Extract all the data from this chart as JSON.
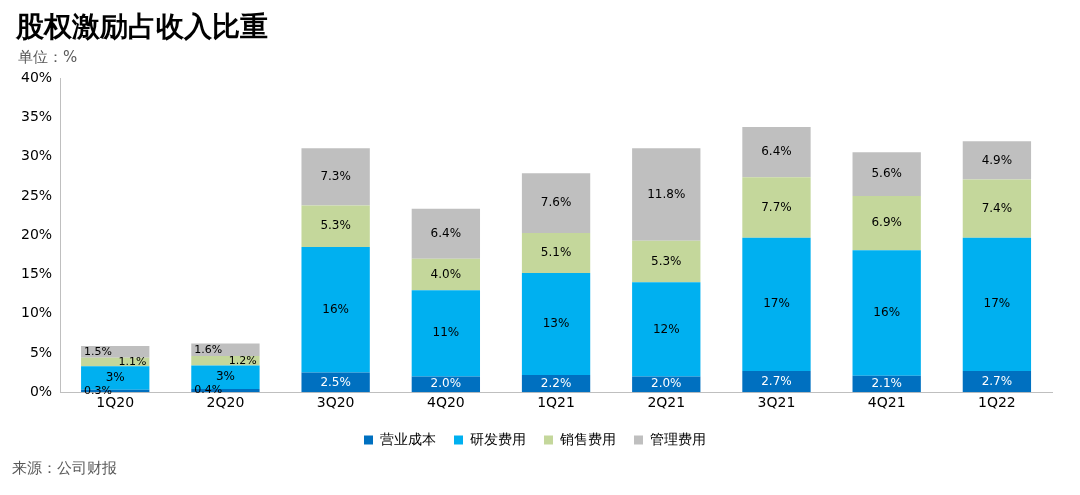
{
  "chart_data": {
    "type": "bar",
    "stacked": true,
    "title": "股权激励占收入比重",
    "subtitle": "单位：%",
    "categories": [
      "1Q20",
      "2Q20",
      "3Q20",
      "4Q20",
      "1Q21",
      "2Q21",
      "3Q21",
      "4Q21",
      "1Q22"
    ],
    "series": [
      {
        "name": "营业成本",
        "color": "#0070c0",
        "values": [
          0.3,
          0.4,
          2.5,
          2.0,
          2.2,
          2.0,
          2.7,
          2.1,
          2.7
        ],
        "value_labels": [
          "0.3%",
          "0.4%",
          "2.5%",
          "2.0%",
          "2.2%",
          "2.0%",
          "2.7%",
          "2.1%",
          "2.7%"
        ]
      },
      {
        "name": "研发费用",
        "color": "#00b0f0",
        "values": [
          3,
          3,
          16,
          11,
          13,
          12,
          17,
          16,
          17
        ],
        "value_labels": [
          "3%",
          "3%",
          "16%",
          "11%",
          "13%",
          "12%",
          "17%",
          "16%",
          "17%"
        ]
      },
      {
        "name": "销售费用",
        "color": "#c4d79b",
        "values": [
          1.1,
          1.2,
          5.3,
          4.0,
          5.1,
          5.3,
          7.7,
          6.9,
          7.4
        ],
        "value_labels": [
          "1.1%",
          "1.2%",
          "5.3%",
          "4.0%",
          "5.1%",
          "5.3%",
          "7.7%",
          "6.9%",
          "7.4%"
        ]
      },
      {
        "name": "管理费用",
        "color": "#bfbfbf",
        "values": [
          1.5,
          1.6,
          7.3,
          6.4,
          7.6,
          11.8,
          6.4,
          5.6,
          4.9
        ],
        "value_labels": [
          "1.5%",
          "1.6%",
          "7.3%",
          "6.4%",
          "7.6%",
          "11.8%",
          "6.4%",
          "5.6%",
          "4.9%"
        ]
      }
    ],
    "ylim": [
      0,
      40
    ],
    "yticks": [
      {
        "value": 0,
        "label": "0%"
      },
      {
        "value": 5,
        "label": "5%"
      },
      {
        "value": 10,
        "label": "10%"
      },
      {
        "value": 15,
        "label": "15%"
      },
      {
        "value": 20,
        "label": "20%"
      },
      {
        "value": 25,
        "label": "25%"
      },
      {
        "value": 30,
        "label": "30%"
      },
      {
        "value": 35,
        "label": "35%"
      },
      {
        "value": 40,
        "label": "40%"
      }
    ],
    "grid": false,
    "legend": "bottom",
    "annotations": [
      "来源：公司财报"
    ]
  }
}
